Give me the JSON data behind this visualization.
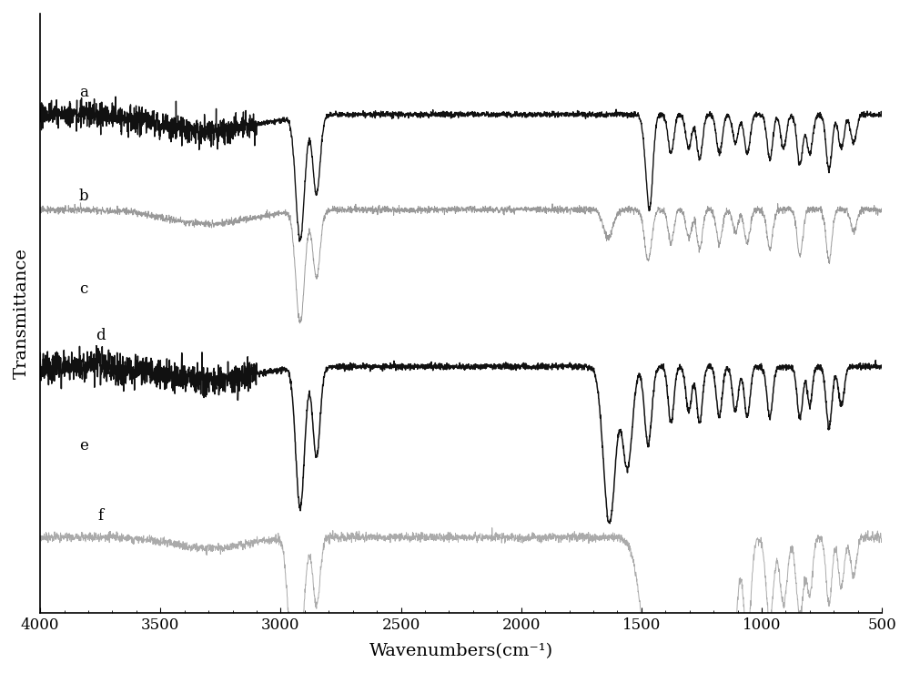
{
  "xlabel": "Wavenumbers(cm⁻¹)",
  "ylabel": "Transmittance",
  "xmin": 500,
  "xmax": 4000,
  "x_ticks": [
    4000,
    3500,
    3000,
    2500,
    2000,
    1500,
    1000,
    500
  ],
  "x_tick_labels": [
    "4000",
    "3500",
    "3000",
    "2500",
    "2000",
    "1500",
    "1000",
    "500"
  ],
  "spectra_labels": [
    "a",
    "b",
    "c",
    "d",
    "e",
    "f"
  ],
  "colors_black": "#111111",
  "colors_gray": "#999999",
  "figsize": [
    10.0,
    7.39
  ],
  "dpi": 100
}
